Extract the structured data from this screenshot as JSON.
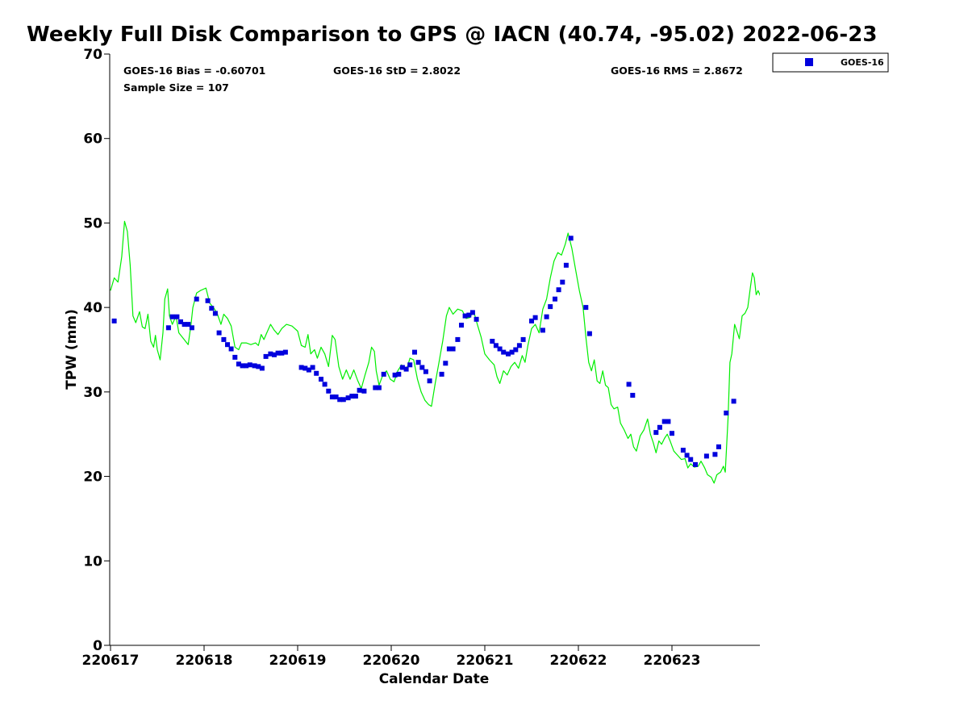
{
  "chart_data": {
    "type": "scatter",
    "title": "Weekly Full Disk Comparison to GPS @ IACN (40.74, -95.02) 2022-06-23",
    "xlabel": "Calendar Date",
    "ylabel": "TPW (mm)",
    "xlim": [
      0,
      6.95
    ],
    "ylim": [
      0,
      70
    ],
    "x_ticks": [
      0,
      1,
      2,
      3,
      4,
      5,
      6
    ],
    "x_tick_labels": [
      "220617",
      "220618",
      "220619",
      "220620",
      "220621",
      "220622",
      "220623"
    ],
    "y_ticks": [
      0,
      10,
      20,
      30,
      40,
      50,
      60,
      70
    ],
    "y_tick_labels": [
      "0",
      "10",
      "20",
      "30",
      "40",
      "50",
      "60",
      "70"
    ],
    "legend": {
      "position": "top-right-outside",
      "entries": [
        "GOES-16"
      ]
    },
    "stats": {
      "bias": "GOES-16 Bias = -0.60701",
      "std": "GOES-16 StD = 2.8022",
      "rms": "GOES-16 RMS = 2.8672",
      "sample": "Sample Size = 107"
    },
    "series": [
      {
        "name": "GOES-16",
        "kind": "scatter",
        "color": "#0000dd",
        "points": [
          [
            0.04,
            38.4
          ],
          [
            0.62,
            37.6
          ],
          [
            0.66,
            38.9
          ],
          [
            0.71,
            38.9
          ],
          [
            0.75,
            38.3
          ],
          [
            0.79,
            38.0
          ],
          [
            0.83,
            38.0
          ],
          [
            0.87,
            37.6
          ],
          [
            0.92,
            41.0
          ],
          [
            1.04,
            40.8
          ],
          [
            1.08,
            39.9
          ],
          [
            1.12,
            39.3
          ],
          [
            1.16,
            37.0
          ],
          [
            1.21,
            36.2
          ],
          [
            1.25,
            35.6
          ],
          [
            1.29,
            35.1
          ],
          [
            1.33,
            34.1
          ],
          [
            1.37,
            33.3
          ],
          [
            1.41,
            33.1
          ],
          [
            1.45,
            33.1
          ],
          [
            1.49,
            33.2
          ],
          [
            1.54,
            33.1
          ],
          [
            1.58,
            33.0
          ],
          [
            1.62,
            32.8
          ],
          [
            1.66,
            34.2
          ],
          [
            1.71,
            34.5
          ],
          [
            1.75,
            34.4
          ],
          [
            1.79,
            34.6
          ],
          [
            1.83,
            34.6
          ],
          [
            1.87,
            34.7
          ],
          [
            2.04,
            32.9
          ],
          [
            2.08,
            32.8
          ],
          [
            2.12,
            32.6
          ],
          [
            2.16,
            32.9
          ],
          [
            2.2,
            32.2
          ],
          [
            2.25,
            31.5
          ],
          [
            2.29,
            30.9
          ],
          [
            2.33,
            30.1
          ],
          [
            2.37,
            29.4
          ],
          [
            2.41,
            29.4
          ],
          [
            2.45,
            29.1
          ],
          [
            2.49,
            29.1
          ],
          [
            2.54,
            29.3
          ],
          [
            2.58,
            29.5
          ],
          [
            2.62,
            29.5
          ],
          [
            2.66,
            30.2
          ],
          [
            2.71,
            30.1
          ],
          [
            2.83,
            30.5
          ],
          [
            2.87,
            30.5
          ],
          [
            2.92,
            32.1
          ],
          [
            3.04,
            32.0
          ],
          [
            3.08,
            32.1
          ],
          [
            3.12,
            32.9
          ],
          [
            3.16,
            32.7
          ],
          [
            3.2,
            33.2
          ],
          [
            3.25,
            34.7
          ],
          [
            3.29,
            33.5
          ],
          [
            3.33,
            32.9
          ],
          [
            3.37,
            32.4
          ],
          [
            3.41,
            31.3
          ],
          [
            3.54,
            32.1
          ],
          [
            3.58,
            33.4
          ],
          [
            3.62,
            35.1
          ],
          [
            3.66,
            35.1
          ],
          [
            3.71,
            36.2
          ],
          [
            3.75,
            37.9
          ],
          [
            3.79,
            39.0
          ],
          [
            3.83,
            39.1
          ],
          [
            3.87,
            39.4
          ],
          [
            3.91,
            38.6
          ],
          [
            4.08,
            36.0
          ],
          [
            4.12,
            35.5
          ],
          [
            4.16,
            35.1
          ],
          [
            4.2,
            34.7
          ],
          [
            4.25,
            34.5
          ],
          [
            4.29,
            34.7
          ],
          [
            4.33,
            35.0
          ],
          [
            4.37,
            35.5
          ],
          [
            4.41,
            36.2
          ],
          [
            4.5,
            38.4
          ],
          [
            4.54,
            38.8
          ],
          [
            4.62,
            37.3
          ],
          [
            4.66,
            38.9
          ],
          [
            4.7,
            40.1
          ],
          [
            4.75,
            41.0
          ],
          [
            4.79,
            42.1
          ],
          [
            4.83,
            43.0
          ],
          [
            4.87,
            45.0
          ],
          [
            4.92,
            48.2
          ],
          [
            5.08,
            40.0
          ],
          [
            5.12,
            36.9
          ],
          [
            5.54,
            30.9
          ],
          [
            5.58,
            29.6
          ],
          [
            5.83,
            25.2
          ],
          [
            5.87,
            25.8
          ],
          [
            5.92,
            26.5
          ],
          [
            5.96,
            26.5
          ],
          [
            6.0,
            25.1
          ],
          [
            6.12,
            23.1
          ],
          [
            6.16,
            22.5
          ],
          [
            6.2,
            22.0
          ],
          [
            6.25,
            21.4
          ],
          [
            6.37,
            22.4
          ],
          [
            6.46,
            22.6
          ],
          [
            6.5,
            23.5
          ],
          [
            6.58,
            27.5
          ],
          [
            6.66,
            28.9
          ]
        ]
      },
      {
        "name": "GPS",
        "kind": "line",
        "color": "#00ee00",
        "points": [
          [
            0.0,
            42.0
          ],
          [
            0.04,
            43.5
          ],
          [
            0.08,
            43.0
          ],
          [
            0.12,
            46.0
          ],
          [
            0.15,
            50.2
          ],
          [
            0.18,
            49.0
          ],
          [
            0.21,
            45.0
          ],
          [
            0.24,
            39.0
          ],
          [
            0.27,
            38.2
          ],
          [
            0.31,
            39.5
          ],
          [
            0.34,
            37.7
          ],
          [
            0.37,
            37.5
          ],
          [
            0.4,
            39.2
          ],
          [
            0.43,
            36.0
          ],
          [
            0.46,
            35.3
          ],
          [
            0.48,
            36.7
          ],
          [
            0.5,
            35.0
          ],
          [
            0.53,
            33.8
          ],
          [
            0.56,
            37.0
          ],
          [
            0.58,
            41.0
          ],
          [
            0.61,
            42.2
          ],
          [
            0.63,
            39.0
          ],
          [
            0.66,
            38.0
          ],
          [
            0.7,
            39.0
          ],
          [
            0.73,
            37.0
          ],
          [
            0.78,
            36.3
          ],
          [
            0.83,
            35.6
          ],
          [
            0.86,
            38.0
          ],
          [
            0.88,
            40.0
          ],
          [
            0.92,
            41.7
          ],
          [
            0.96,
            42.0
          ],
          [
            1.02,
            42.3
          ],
          [
            1.06,
            40.5
          ],
          [
            1.1,
            40.0
          ],
          [
            1.14,
            39.3
          ],
          [
            1.18,
            38.0
          ],
          [
            1.21,
            39.2
          ],
          [
            1.25,
            38.7
          ],
          [
            1.29,
            37.8
          ],
          [
            1.33,
            35.3
          ],
          [
            1.37,
            35.0
          ],
          [
            1.4,
            35.8
          ],
          [
            1.45,
            35.8
          ],
          [
            1.5,
            35.6
          ],
          [
            1.55,
            35.8
          ],
          [
            1.58,
            35.5
          ],
          [
            1.61,
            36.8
          ],
          [
            1.64,
            36.2
          ],
          [
            1.67,
            37.0
          ],
          [
            1.71,
            38.0
          ],
          [
            1.75,
            37.3
          ],
          [
            1.79,
            36.8
          ],
          [
            1.83,
            37.5
          ],
          [
            1.88,
            38.0
          ],
          [
            1.94,
            37.8
          ],
          [
            2.0,
            37.2
          ],
          [
            2.04,
            35.5
          ],
          [
            2.08,
            35.3
          ],
          [
            2.11,
            36.8
          ],
          [
            2.14,
            34.5
          ],
          [
            2.18,
            35.0
          ],
          [
            2.21,
            34.0
          ],
          [
            2.25,
            35.3
          ],
          [
            2.29,
            34.5
          ],
          [
            2.33,
            33.0
          ],
          [
            2.37,
            36.7
          ],
          [
            2.4,
            36.2
          ],
          [
            2.44,
            33.0
          ],
          [
            2.48,
            31.5
          ],
          [
            2.52,
            32.6
          ],
          [
            2.56,
            31.5
          ],
          [
            2.6,
            32.6
          ],
          [
            2.64,
            31.4
          ],
          [
            2.68,
            30.4
          ],
          [
            2.72,
            32.0
          ],
          [
            2.76,
            33.5
          ],
          [
            2.79,
            35.3
          ],
          [
            2.82,
            34.8
          ],
          [
            2.84,
            32.5
          ],
          [
            2.87,
            30.8
          ],
          [
            2.91,
            32.0
          ],
          [
            2.95,
            32.5
          ],
          [
            2.99,
            31.5
          ],
          [
            3.03,
            31.2
          ],
          [
            3.07,
            32.5
          ],
          [
            3.11,
            33.2
          ],
          [
            3.16,
            32.5
          ],
          [
            3.2,
            34.0
          ],
          [
            3.24,
            33.8
          ],
          [
            3.28,
            31.5
          ],
          [
            3.32,
            30.0
          ],
          [
            3.36,
            29.0
          ],
          [
            3.4,
            28.5
          ],
          [
            3.43,
            28.3
          ],
          [
            3.47,
            31.0
          ],
          [
            3.51,
            33.5
          ],
          [
            3.55,
            36.0
          ],
          [
            3.59,
            39.0
          ],
          [
            3.62,
            40.0
          ],
          [
            3.66,
            39.2
          ],
          [
            3.71,
            39.8
          ],
          [
            3.76,
            39.6
          ],
          [
            3.8,
            38.7
          ],
          [
            3.84,
            38.8
          ],
          [
            3.88,
            39.6
          ],
          [
            3.92,
            38.0
          ],
          [
            3.96,
            36.5
          ],
          [
            4.0,
            34.5
          ],
          [
            4.05,
            33.8
          ],
          [
            4.1,
            33.2
          ],
          [
            4.13,
            31.8
          ],
          [
            4.16,
            31.0
          ],
          [
            4.2,
            32.5
          ],
          [
            4.24,
            32.0
          ],
          [
            4.28,
            33.0
          ],
          [
            4.32,
            33.5
          ],
          [
            4.36,
            32.8
          ],
          [
            4.4,
            34.3
          ],
          [
            4.43,
            33.5
          ],
          [
            4.46,
            35.5
          ],
          [
            4.5,
            37.5
          ],
          [
            4.54,
            38.0
          ],
          [
            4.58,
            37.0
          ],
          [
            4.62,
            39.8
          ],
          [
            4.66,
            41.0
          ],
          [
            4.7,
            43.5
          ],
          [
            4.74,
            45.5
          ],
          [
            4.78,
            46.5
          ],
          [
            4.82,
            46.2
          ],
          [
            4.86,
            47.5
          ],
          [
            4.89,
            48.8
          ],
          [
            4.93,
            47.0
          ],
          [
            4.97,
            44.5
          ],
          [
            5.01,
            42.0
          ],
          [
            5.05,
            40.0
          ],
          [
            5.08,
            36.5
          ],
          [
            5.11,
            33.5
          ],
          [
            5.14,
            32.5
          ],
          [
            5.17,
            33.8
          ],
          [
            5.2,
            31.3
          ],
          [
            5.23,
            31.0
          ],
          [
            5.26,
            32.5
          ],
          [
            5.29,
            30.8
          ],
          [
            5.32,
            30.5
          ],
          [
            5.35,
            28.5
          ],
          [
            5.38,
            28.0
          ],
          [
            5.42,
            28.2
          ],
          [
            5.45,
            26.3
          ],
          [
            5.49,
            25.5
          ],
          [
            5.53,
            24.5
          ],
          [
            5.56,
            25.0
          ],
          [
            5.59,
            23.5
          ],
          [
            5.62,
            23.0
          ],
          [
            5.66,
            24.8
          ],
          [
            5.7,
            25.5
          ],
          [
            5.74,
            26.8
          ],
          [
            5.77,
            25.0
          ],
          [
            5.8,
            24.0
          ],
          [
            5.83,
            22.8
          ],
          [
            5.86,
            24.2
          ],
          [
            5.89,
            23.8
          ],
          [
            5.92,
            24.5
          ],
          [
            5.95,
            25.0
          ],
          [
            5.98,
            24.2
          ],
          [
            6.02,
            23.0
          ],
          [
            6.06,
            22.5
          ],
          [
            6.1,
            22.0
          ],
          [
            6.14,
            22.1
          ],
          [
            6.17,
            21.0
          ],
          [
            6.2,
            21.5
          ],
          [
            6.24,
            21.1
          ],
          [
            6.28,
            21.2
          ],
          [
            6.31,
            21.8
          ],
          [
            6.35,
            21.0
          ],
          [
            6.38,
            20.2
          ],
          [
            6.42,
            19.9
          ],
          [
            6.45,
            19.2
          ],
          [
            6.48,
            20.2
          ],
          [
            6.52,
            20.5
          ],
          [
            6.55,
            21.2
          ],
          [
            6.57,
            20.5
          ],
          [
            6.6,
            27.0
          ],
          [
            6.62,
            33.5
          ],
          [
            6.64,
            34.5
          ],
          [
            6.67,
            38.0
          ],
          [
            6.7,
            37.0
          ],
          [
            6.72,
            36.3
          ],
          [
            6.75,
            39.0
          ],
          [
            6.78,
            39.3
          ],
          [
            6.81,
            40.0
          ],
          [
            6.84,
            42.5
          ],
          [
            6.86,
            44.1
          ],
          [
            6.88,
            43.5
          ],
          [
            6.9,
            41.5
          ],
          [
            6.92,
            42.0
          ],
          [
            6.94,
            41.5
          ],
          [
            6.96,
            40.9
          ],
          [
            6.99,
            41.0
          ],
          [
            7.02,
            41.8
          ],
          [
            7.04,
            42.0
          ]
        ]
      }
    ]
  }
}
